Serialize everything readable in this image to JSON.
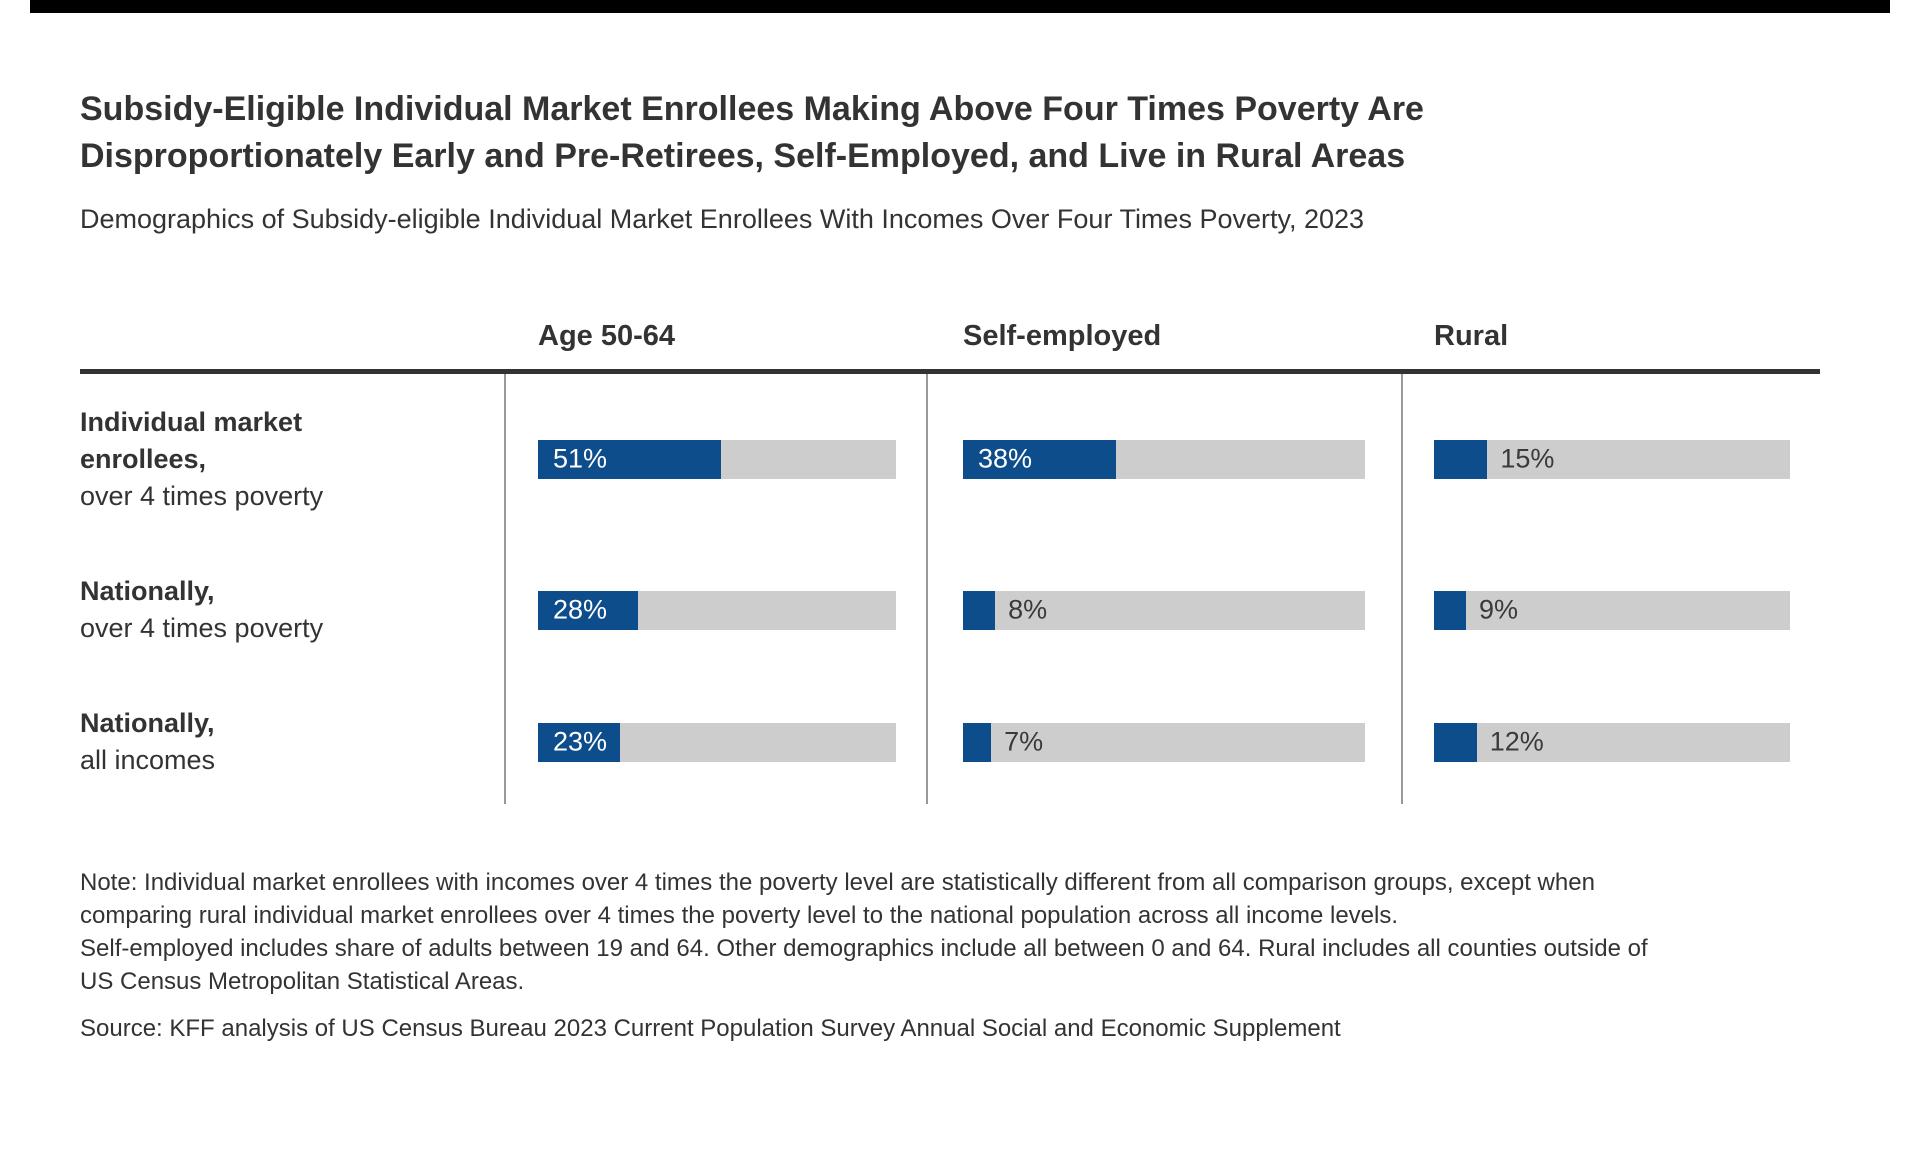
{
  "title": {
    "line1": "Subsidy-Eligible Individual Market Enrollees Making Above Four Times Poverty Are",
    "line2": "Disproportionately Early and Pre-Retirees, Self-Employed, and Live in Rural Areas"
  },
  "subtitle": "Demographics of Subsidy-eligible Individual Market Enrollees With Incomes Over Four Times Poverty, 2023",
  "chart_data": {
    "type": "bar",
    "orientation": "horizontal",
    "unit": "percent",
    "xlim": [
      0,
      100
    ],
    "title": "Demographics of Subsidy-eligible Individual Market Enrollees With Incomes Over Four Times Poverty, 2023",
    "columns": [
      "Age 50-64",
      "Self-employed",
      "Rural"
    ],
    "rows": [
      {
        "label_bold": "Individual market enrollees,",
        "label_regular": "over 4 times poverty",
        "values": [
          51,
          38,
          15
        ]
      },
      {
        "label_bold": "Nationally,",
        "label_regular": "over 4 times poverty",
        "values": [
          28,
          8,
          9
        ]
      },
      {
        "label_bold": "Nationally,",
        "label_regular": "all incomes",
        "values": [
          23,
          7,
          12
        ]
      }
    ],
    "colors": {
      "bar": "#0E4D8B",
      "track": "#CDCDCD",
      "value_inside": "#FFFFFF",
      "value_outside": "#3A3A3A"
    },
    "inside_label_threshold": 20
  },
  "note": {
    "lines": [
      "Note: Individual market enrollees with incomes over 4 times the poverty level are statistically different from all comparison groups, except when",
      "comparing rural individual market enrollees over 4 times the poverty level to the national population across all income levels.",
      "Self-employed includes share of adults between 19 and 64. Other demographics include all between 0 and 64. Rural includes all counties outside of",
      "US Census Metropolitan Statistical Areas."
    ]
  },
  "source": "Source: KFF analysis of US Census Bureau 2023 Current Population Survey Annual Social and Economic Supplement"
}
